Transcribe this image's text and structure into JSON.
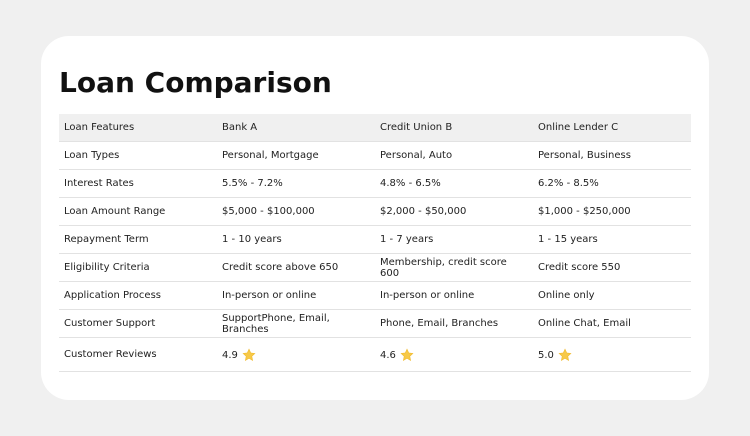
{
  "header": {
    "title": "Loan Comparison"
  },
  "table": {
    "columns": [
      "Loan Features",
      "Bank A",
      "Credit Union B",
      "Online Lender C"
    ],
    "rows": [
      [
        "Loan Types",
        "Personal, Mortgage",
        "Personal, Auto",
        "Personal, Business"
      ],
      [
        "Interest Rates",
        "5.5% - 7.2%",
        "4.8% - 6.5%",
        "6.2% - 8.5%"
      ],
      [
        "Loan Amount Range",
        "$5,000 - $100,000",
        "$2,000 - $50,000",
        "$1,000 - $250,000"
      ],
      [
        "Repayment Term",
        "1 - 10 years",
        "1 - 7 years",
        "1 - 15 years"
      ],
      [
        "Eligibility Criteria",
        "Credit score above 650",
        "Membership, credit score 600",
        "Credit score 550"
      ],
      [
        "Application Process",
        "In-person or online",
        "In-person or online",
        "Online only"
      ],
      [
        "Customer Support",
        "SupportPhone, Email, Branches",
        "Phone, Email, Branches",
        "Online Chat, Email"
      ],
      [
        "Customer Reviews",
        "4.9",
        "4.6",
        "5.0"
      ]
    ]
  }
}
